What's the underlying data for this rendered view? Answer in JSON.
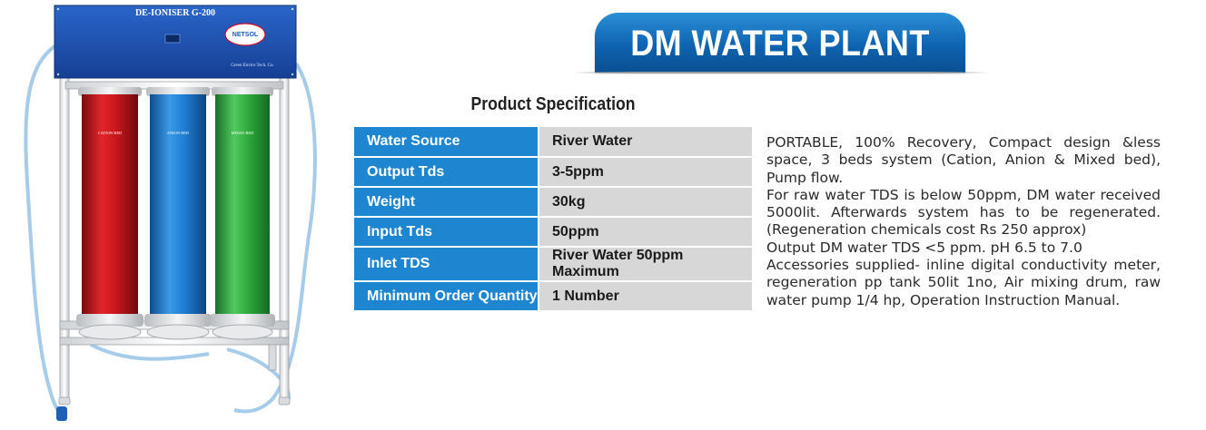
{
  "product_image": {
    "panel_label": "DE-IONISER G-200",
    "logo_text": "NETSOL",
    "maker_text": "Green Enviro Tech. Co.",
    "bed_labels": [
      "CATION BED",
      "ANION BED",
      "MIXED BED"
    ],
    "colors": {
      "cation": "#c9171b",
      "anion": "#1f7fd3",
      "mixed": "#2eab3c",
      "panel": "#1d56b8"
    }
  },
  "banner": {
    "title": "DM WATER PLANT"
  },
  "spec": {
    "heading": "Product Specification",
    "rows": [
      {
        "label": "Water Source",
        "value": "River Water"
      },
      {
        "label": "Output Tds",
        "value": "3-5ppm"
      },
      {
        "label": "Weight",
        "value": "30kg"
      },
      {
        "label": "Input Tds",
        "value": "50ppm"
      },
      {
        "label": "Inlet TDS",
        "value": "River Water 50ppm Maximum"
      },
      {
        "label": "Minimum Order Quantity",
        "value": "1 Number"
      }
    ]
  },
  "description": [
    "PORTABLE, 100% Recovery, Compact design &less space, 3 beds system (Cation, Anion & Mixed bed), Pump flow.",
    "For raw water TDS is below 50ppm, DM water received 5000lit. Afterwards system has to be regenerated. (Regeneration chemicals cost Rs 250 approx)",
    "Output DM water TDS <5 ppm. pH 6.5 to 7.0",
    "Accessories supplied- inline digital conductivity meter, regeneration pp tank 50lit 1no, Air mixing drum, raw water pump 1/4 hp, Operation Instruction Manual."
  ]
}
